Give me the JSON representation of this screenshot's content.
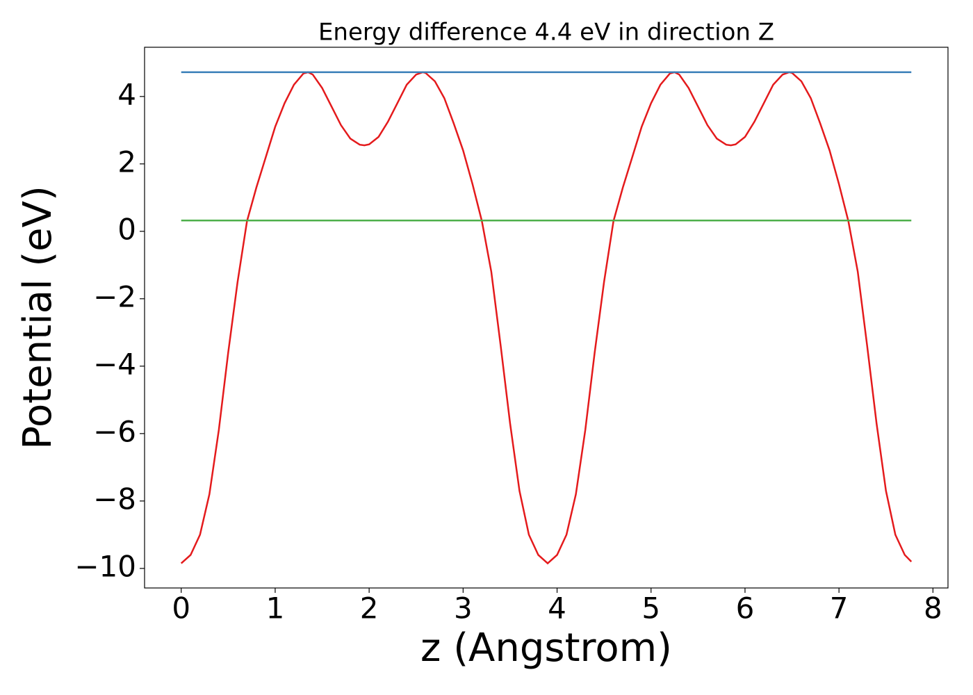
{
  "chart_data": {
    "type": "line",
    "title": "Energy difference 4.4 eV in direction Z",
    "xlabel": "z (Angstrom)",
    "ylabel": "Potential (eV)",
    "xlim": [
      -0.39,
      8.16
    ],
    "ylim": [
      -10.58,
      5.46
    ],
    "xticks": [
      0,
      1,
      2,
      3,
      4,
      5,
      6,
      7,
      8
    ],
    "yticks": [
      {
        "value": -10,
        "label": "−10"
      },
      {
        "value": -8,
        "label": "−8"
      },
      {
        "value": -6,
        "label": "−6"
      },
      {
        "value": -4,
        "label": "−4"
      },
      {
        "value": -2,
        "label": "−2"
      },
      0,
      2,
      4
    ],
    "series": [
      {
        "color": "#e41a1c",
        "x": [
          0,
          0.1,
          0.2,
          0.3,
          0.4,
          0.5,
          0.6,
          0.7,
          0.8,
          0.9,
          1.0,
          1.1,
          1.2,
          1.3,
          1.35,
          1.4,
          1.5,
          1.6,
          1.7,
          1.8,
          1.9,
          1.95,
          2.0,
          2.1,
          2.2,
          2.3,
          2.4,
          2.5,
          2.57,
          2.6,
          2.7,
          2.8,
          2.9,
          3.0,
          3.1,
          3.2,
          3.3,
          3.4,
          3.5,
          3.6,
          3.7,
          3.8,
          3.9,
          4.0,
          4.1,
          4.2,
          4.3,
          4.4,
          4.5,
          4.6,
          4.7,
          4.8,
          4.9,
          5.0,
          5.1,
          5.2,
          5.25,
          5.3,
          5.4,
          5.5,
          5.6,
          5.7,
          5.8,
          5.85,
          5.9,
          6.0,
          6.1,
          6.2,
          6.3,
          6.4,
          6.47,
          6.5,
          6.6,
          6.7,
          6.8,
          6.9,
          7.0,
          7.1,
          7.2,
          7.3,
          7.4,
          7.5,
          7.6,
          7.7,
          7.77
        ],
        "values": [
          -9.85,
          -9.6,
          -9.0,
          -7.8,
          -5.9,
          -3.6,
          -1.5,
          0.3,
          1.3,
          2.2,
          3.1,
          3.8,
          4.35,
          4.68,
          4.72,
          4.65,
          4.25,
          3.7,
          3.15,
          2.75,
          2.57,
          2.55,
          2.58,
          2.8,
          3.25,
          3.8,
          4.35,
          4.65,
          4.72,
          4.7,
          4.45,
          3.95,
          3.2,
          2.4,
          1.4,
          0.3,
          -1.2,
          -3.4,
          -5.7,
          -7.7,
          -9.0,
          -9.6,
          -9.85,
          -9.6,
          -9.0,
          -7.8,
          -5.9,
          -3.6,
          -1.5,
          0.3,
          1.3,
          2.2,
          3.1,
          3.8,
          4.35,
          4.68,
          4.72,
          4.65,
          4.25,
          3.7,
          3.15,
          2.75,
          2.57,
          2.55,
          2.58,
          2.8,
          3.25,
          3.8,
          4.35,
          4.65,
          4.72,
          4.7,
          4.45,
          3.95,
          3.2,
          2.4,
          1.4,
          0.3,
          -1.2,
          -3.4,
          -5.7,
          -7.7,
          -9.0,
          -9.6,
          -9.8
        ]
      },
      {
        "color": "#377eb8",
        "x": [
          0,
          7.77
        ],
        "values": [
          4.72,
          4.72
        ]
      },
      {
        "color": "#4daf4a",
        "x": [
          0,
          7.77
        ],
        "values": [
          0.32,
          0.32
        ]
      }
    ]
  }
}
